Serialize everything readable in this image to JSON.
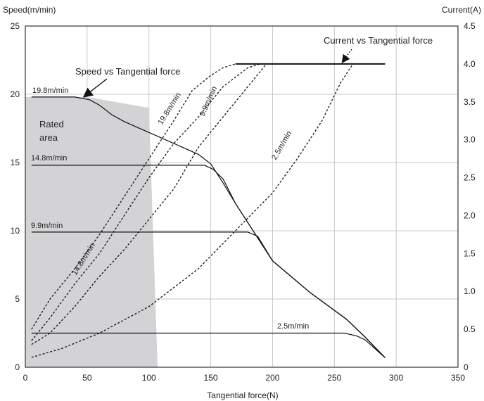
{
  "chart_data": {
    "type": "line",
    "xlabel": "Tangential force(N)",
    "ylabel_left": "Speed(m/min)",
    "ylabel_right": "Current(A)",
    "xlim": [
      0,
      350
    ],
    "ylim_left": [
      0,
      25
    ],
    "ylim_right": [
      0,
      4.5
    ],
    "x_ticks": [
      "0",
      "50",
      "100",
      "150",
      "200",
      "250",
      "300",
      "350"
    ],
    "y_left_ticks": [
      "0",
      "5",
      "10",
      "15",
      "20",
      "25"
    ],
    "y_right_ticks": [
      "0",
      "0.5",
      "1.0",
      "1.5",
      "2.0",
      "2.5",
      "3.0",
      "3.5",
      "4.0",
      "4.5"
    ],
    "grid": true,
    "rated_area": {
      "label_line1": "Rated",
      "label_line2": "area",
      "polygon": [
        [
          0,
          0
        ],
        [
          0,
          19.8
        ],
        [
          50,
          19.8
        ],
        [
          100,
          19.0
        ],
        [
          107,
          0
        ]
      ]
    },
    "speed_series": [
      {
        "label": "19.8m/min",
        "points": [
          [
            5,
            19.8
          ],
          [
            40,
            19.8
          ],
          [
            52,
            19.6
          ],
          [
            60,
            19.2
          ],
          [
            70,
            18.5
          ],
          [
            80,
            18.0
          ],
          [
            100,
            17.2
          ],
          [
            120,
            16.4
          ],
          [
            140,
            15.6
          ],
          [
            150,
            14.9
          ],
          [
            160,
            13.5
          ],
          [
            170,
            12.0
          ],
          [
            200,
            7.8
          ],
          [
            230,
            5.5
          ],
          [
            260,
            3.5
          ],
          [
            275,
            2.2
          ],
          [
            291,
            0.7
          ]
        ]
      },
      {
        "label": "14.8m/min",
        "points": [
          [
            5,
            14.8
          ],
          [
            120,
            14.8
          ],
          [
            145,
            14.8
          ],
          [
            152,
            14.5
          ],
          [
            160,
            13.8
          ],
          [
            170,
            12.0
          ],
          [
            200,
            7.8
          ],
          [
            230,
            5.5
          ],
          [
            260,
            3.5
          ],
          [
            275,
            2.2
          ],
          [
            291,
            0.7
          ]
        ]
      },
      {
        "label": "9.9m/min",
        "points": [
          [
            5,
            9.9
          ],
          [
            150,
            9.9
          ],
          [
            180,
            9.9
          ],
          [
            188,
            9.6
          ],
          [
            200,
            7.8
          ],
          [
            230,
            5.5
          ],
          [
            260,
            3.5
          ],
          [
            275,
            2.2
          ],
          [
            291,
            0.7
          ]
        ]
      },
      {
        "label": "2.5m/min",
        "points": [
          [
            5,
            2.5
          ],
          [
            100,
            2.5
          ],
          [
            200,
            2.5
          ],
          [
            258,
            2.5
          ],
          [
            268,
            2.3
          ],
          [
            275,
            2.0
          ],
          [
            291,
            0.7
          ]
        ]
      }
    ],
    "current_series": [
      {
        "label": "19.8m/min",
        "points": [
          [
            5,
            0.5
          ],
          [
            20,
            0.9
          ],
          [
            40,
            1.3
          ],
          [
            60,
            1.75
          ],
          [
            80,
            2.25
          ],
          [
            100,
            2.75
          ],
          [
            120,
            3.25
          ],
          [
            135,
            3.65
          ],
          [
            150,
            3.85
          ],
          [
            160,
            3.95
          ],
          [
            170,
            4.0
          ],
          [
            291,
            4.0
          ]
        ]
      },
      {
        "label": "14.8m/min",
        "points": [
          [
            5,
            0.35
          ],
          [
            20,
            0.65
          ],
          [
            40,
            1.1
          ],
          [
            60,
            1.5
          ],
          [
            80,
            2.0
          ],
          [
            100,
            2.5
          ],
          [
            120,
            2.95
          ],
          [
            140,
            3.3
          ],
          [
            160,
            3.7
          ],
          [
            180,
            3.95
          ],
          [
            190,
            4.0
          ],
          [
            291,
            4.0
          ]
        ]
      },
      {
        "label": "9.9m/min",
        "points": [
          [
            5,
            0.3
          ],
          [
            20,
            0.45
          ],
          [
            40,
            0.8
          ],
          [
            60,
            1.2
          ],
          [
            80,
            1.55
          ],
          [
            100,
            1.95
          ],
          [
            120,
            2.35
          ],
          [
            140,
            2.9
          ],
          [
            160,
            3.3
          ],
          [
            180,
            3.7
          ],
          [
            195,
            4.0
          ],
          [
            291,
            4.0
          ]
        ]
      },
      {
        "label": "2.5m/min",
        "points": [
          [
            5,
            0.13
          ],
          [
            30,
            0.25
          ],
          [
            60,
            0.45
          ],
          [
            100,
            0.8
          ],
          [
            140,
            1.3
          ],
          [
            170,
            1.8
          ],
          [
            200,
            2.3
          ],
          [
            220,
            2.75
          ],
          [
            240,
            3.25
          ],
          [
            255,
            3.75
          ],
          [
            265,
            4.0
          ],
          [
            291,
            4.0
          ]
        ]
      }
    ],
    "annotations": {
      "speed_vs_force": "Speed vs Tangential force",
      "current_vs_force": "Current vs Tangential force"
    }
  }
}
